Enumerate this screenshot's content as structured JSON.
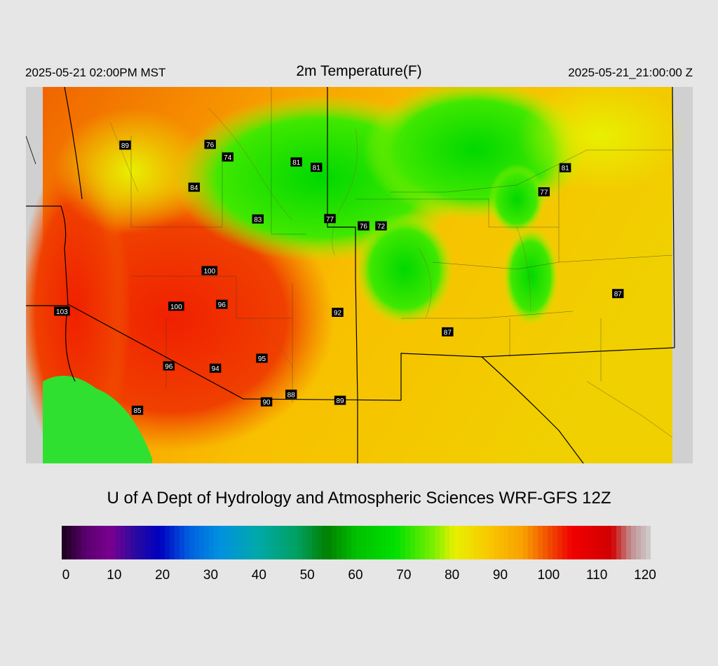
{
  "header": {
    "local_time": "2025-05-21 02:00PM MST",
    "title": "2m Temperature(F)",
    "valid_time": "2025-05-21_21:00:00 Z"
  },
  "credit": "U of A Dept of Hydrology and Atmospheric Sciences WRF-GFS 12Z",
  "colorbar": {
    "ticks": [
      "0",
      "10",
      "20",
      "30",
      "40",
      "50",
      "60",
      "70",
      "80",
      "90",
      "100",
      "110",
      "120"
    ],
    "range": [
      0,
      120
    ],
    "stops": [
      {
        "value": 0,
        "color": "#1a001a"
      },
      {
        "value": 5,
        "color": "#5a0070"
      },
      {
        "value": 10,
        "color": "#7a0090"
      },
      {
        "value": 15,
        "color": "#2a0aa0"
      },
      {
        "value": 20,
        "color": "#0000c0"
      },
      {
        "value": 26,
        "color": "#0060e0"
      },
      {
        "value": 32,
        "color": "#0090e0"
      },
      {
        "value": 40,
        "color": "#00a8a8"
      },
      {
        "value": 48,
        "color": "#00a060"
      },
      {
        "value": 54,
        "color": "#008000"
      },
      {
        "value": 60,
        "color": "#00c000"
      },
      {
        "value": 68,
        "color": "#00e000"
      },
      {
        "value": 76,
        "color": "#80f000"
      },
      {
        "value": 80,
        "color": "#e8f000"
      },
      {
        "value": 87,
        "color": "#f8c800"
      },
      {
        "value": 94,
        "color": "#f8a000"
      },
      {
        "value": 100,
        "color": "#f04000"
      },
      {
        "value": 104,
        "color": "#f00000"
      },
      {
        "value": 112,
        "color": "#d00000"
      },
      {
        "value": 116,
        "color": "#c09090"
      },
      {
        "value": 120,
        "color": "#d0d0d0"
      }
    ]
  },
  "stations": [
    {
      "label": "89",
      "lon": -119.23,
      "lat": 43.97
    },
    {
      "label": "76",
      "lon": -116.47,
      "lat": 43.99
    },
    {
      "label": "74",
      "lon": -115.9,
      "lat": 43.66
    },
    {
      "label": "81",
      "lon": -113.67,
      "lat": 43.53
    },
    {
      "label": "81",
      "lon": -113.02,
      "lat": 43.39
    },
    {
      "label": "84",
      "lon": -116.99,
      "lat": 42.87
    },
    {
      "label": "83",
      "lon": -114.92,
      "lat": 42.04
    },
    {
      "label": "77",
      "lon": -112.58,
      "lat": 42.05
    },
    {
      "label": "76",
      "lon": -111.49,
      "lat": 41.86
    },
    {
      "label": "72",
      "lon": -110.92,
      "lat": 41.86
    },
    {
      "label": "81",
      "lon": -104.94,
      "lat": 43.38
    },
    {
      "label": "77",
      "lon": -105.63,
      "lat": 42.75
    },
    {
      "label": "100",
      "lon": -116.49,
      "lat": 40.69
    },
    {
      "label": "100",
      "lon": -117.57,
      "lat": 39.76
    },
    {
      "label": "96",
      "lon": -116.09,
      "lat": 39.81
    },
    {
      "label": "92",
      "lon": -112.33,
      "lat": 39.6
    },
    {
      "label": "87",
      "lon": -108.76,
      "lat": 39.09
    },
    {
      "label": "87",
      "lon": -103.23,
      "lat": 40.09
    },
    {
      "label": "103",
      "lon": -121.28,
      "lat": 39.63
    },
    {
      "label": "96",
      "lon": -117.81,
      "lat": 38.2
    },
    {
      "label": "94",
      "lon": -116.3,
      "lat": 38.14
    },
    {
      "label": "95",
      "lon": -114.79,
      "lat": 38.4
    },
    {
      "label": "88",
      "lon": -113.84,
      "lat": 37.46
    },
    {
      "label": "89",
      "lon": -112.25,
      "lat": 37.3
    },
    {
      "label": "90",
      "lon": -114.64,
      "lat": 37.26
    },
    {
      "label": "85",
      "lon": -118.83,
      "lat": 37.04
    }
  ]
}
